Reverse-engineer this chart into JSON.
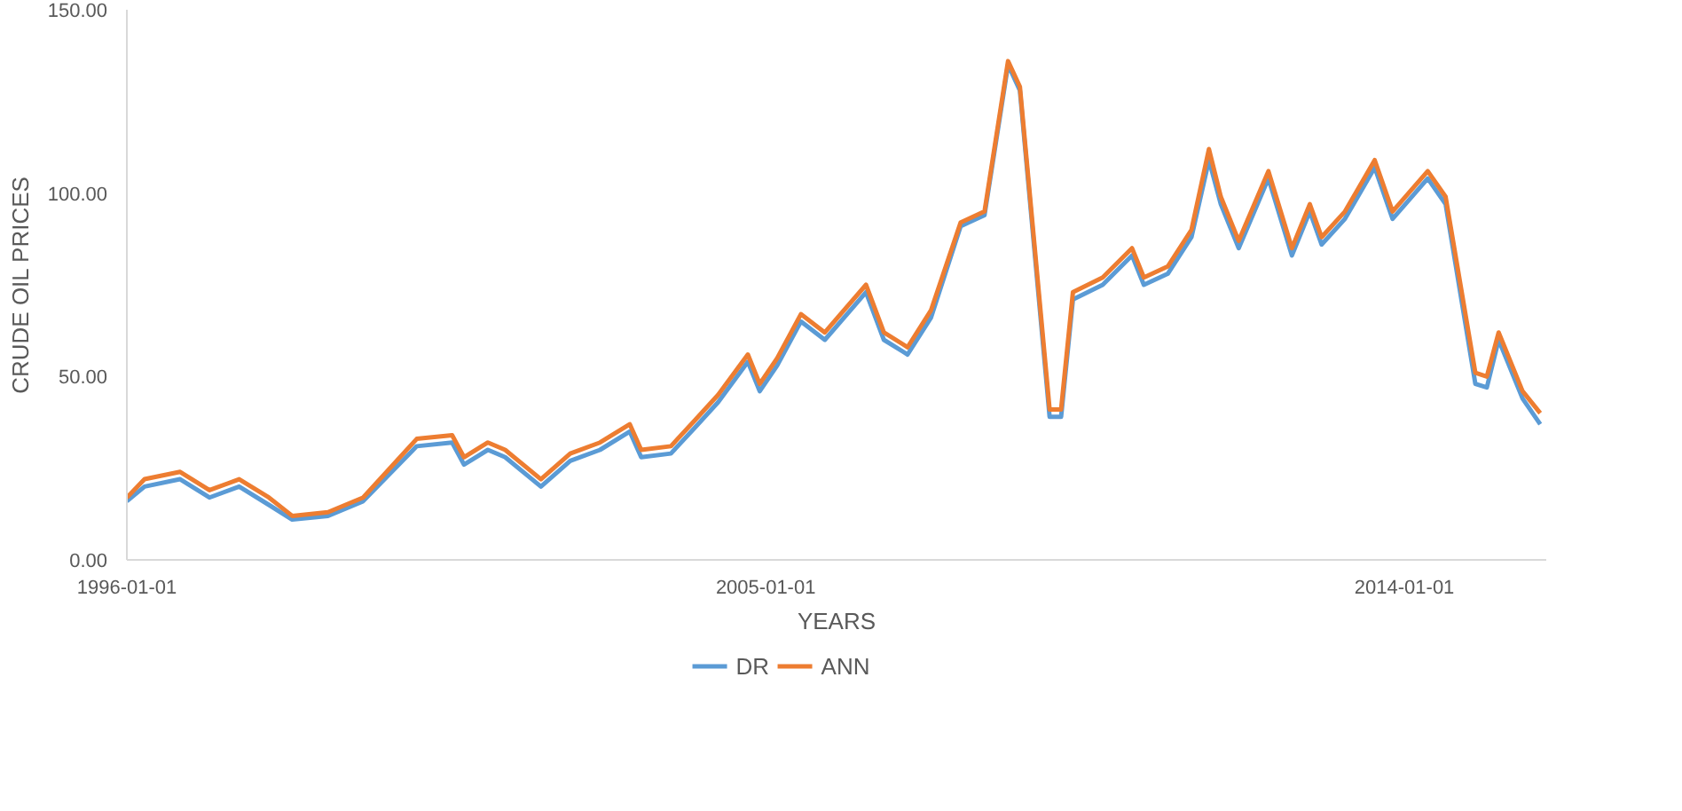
{
  "chart_data": {
    "type": "line",
    "xlabel": "YEARS",
    "ylabel": "CRUDE OIL PRICES",
    "x": [
      "1996-01",
      "1996-04",
      "1996-10",
      "1997-03",
      "1997-08",
      "1998-01",
      "1998-05",
      "1998-11",
      "1999-05",
      "2000-02",
      "2000-08",
      "2000-10",
      "2001-02",
      "2001-05",
      "2001-11",
      "2002-04",
      "2002-09",
      "2003-02",
      "2003-04",
      "2003-09",
      "2004-01",
      "2004-05",
      "2004-10",
      "2004-12",
      "2005-03",
      "2005-07",
      "2005-11",
      "2006-06",
      "2006-09",
      "2007-01",
      "2007-05",
      "2007-10",
      "2008-02",
      "2008-06",
      "2008-08",
      "2009-01",
      "2009-03",
      "2009-05",
      "2009-10",
      "2010-03",
      "2010-05",
      "2010-09",
      "2011-01",
      "2011-04",
      "2011-06",
      "2011-09",
      "2012-02",
      "2012-06",
      "2012-09",
      "2012-11",
      "2013-03",
      "2013-08",
      "2013-11",
      "2014-05",
      "2014-08",
      "2015-01",
      "2015-03",
      "2015-05",
      "2015-09",
      "2015-12"
    ],
    "series": [
      {
        "name": "DR",
        "color": "#5b9bd5",
        "values": [
          16,
          20,
          22,
          17,
          20,
          15,
          11,
          12,
          16,
          31,
          32,
          26,
          30,
          28,
          20,
          27,
          30,
          35,
          28,
          29,
          36,
          43,
          54,
          46,
          53,
          65,
          60,
          73,
          60,
          56,
          66,
          91,
          94,
          135,
          128,
          39,
          39,
          71,
          75,
          83,
          75,
          78,
          88,
          109,
          97,
          85,
          104,
          83,
          95,
          86,
          93,
          107,
          93,
          104,
          97,
          48,
          47,
          60,
          44,
          37
        ]
      },
      {
        "name": "ANN",
        "color": "#ed7d31",
        "values": [
          17,
          22,
          24,
          19,
          22,
          17,
          12,
          13,
          17,
          33,
          34,
          28,
          32,
          30,
          22,
          29,
          32,
          37,
          30,
          31,
          38,
          45,
          56,
          48,
          55,
          67,
          62,
          75,
          62,
          58,
          68,
          92,
          95,
          136,
          129,
          41,
          41,
          73,
          77,
          85,
          77,
          80,
          90,
          112,
          99,
          87,
          106,
          85,
          97,
          88,
          95,
          109,
          95,
          106,
          99,
          51,
          50,
          62,
          46,
          40
        ]
      }
    ],
    "xlim": [
      "1996-01-01",
      "2016-01-01"
    ],
    "xticks": [
      {
        "value": "1996-01-01",
        "label": "1996-01-01"
      },
      {
        "value": "2005-01-01",
        "label": "2005-01-01"
      },
      {
        "value": "2014-01-01",
        "label": "2014-01-01"
      }
    ],
    "ylim": [
      0,
      150
    ],
    "yticks": [
      {
        "value": 0,
        "label": "0.00"
      },
      {
        "value": 50,
        "label": "50.00"
      },
      {
        "value": 100,
        "label": "100.00"
      },
      {
        "value": 150,
        "label": "150.00"
      }
    ],
    "grid": false,
    "legend": "bottom",
    "marker": "none",
    "line_style": "solid"
  }
}
